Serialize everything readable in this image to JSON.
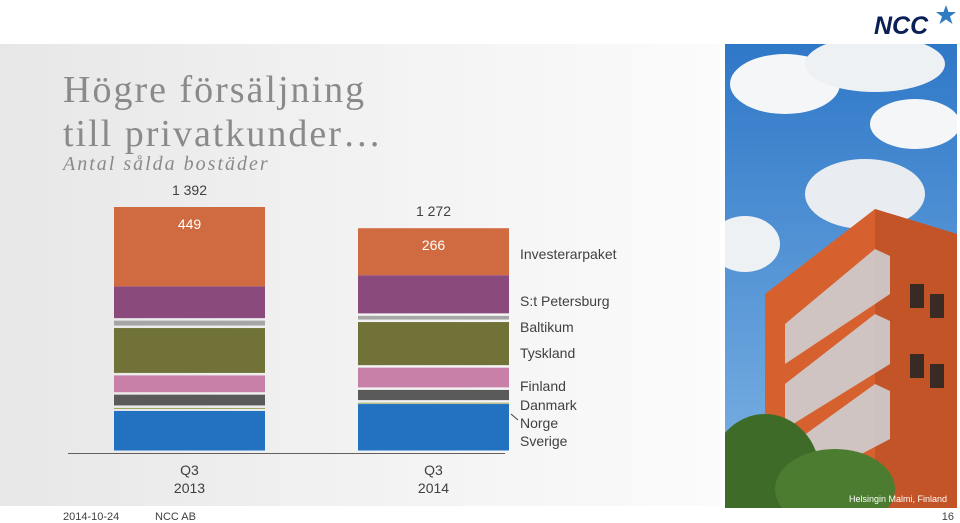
{
  "header": {
    "logo_text": "NCC",
    "brand_color": "#0b1f57",
    "star_color": "#2f7cc1"
  },
  "slide": {
    "title_line1": "Högre försäljning",
    "title_line2": "till privatkunder…",
    "subtitle": "Antal sålda bostäder"
  },
  "chart_data": {
    "type": "bar",
    "stacked": true,
    "categories": [
      "Q3\n2013",
      "Q3\n2014"
    ],
    "category_lines": [
      [
        "Q3",
        "2013"
      ],
      [
        "Q3",
        "2014"
      ]
    ],
    "totals": [
      1392,
      1272
    ],
    "total_labels": [
      "1 392",
      "1 272"
    ],
    "series": [
      {
        "name": "Sverige",
        "color": "#2372c1",
        "values": [
          238,
          277
        ]
      },
      {
        "name": "Norge",
        "color": "#9aa25a",
        "values": [
          17,
          8
        ]
      },
      {
        "name": "Danmark",
        "color": "#5a5a5a",
        "values": [
          75,
          72
        ]
      },
      {
        "name": "Finland",
        "color": "#c880a8",
        "values": [
          109,
          126
        ]
      },
      {
        "name": "Tyskland",
        "color": "#707238",
        "values": [
          268,
          258
        ]
      },
      {
        "name": "Baltikum",
        "color": "#a6a6a6",
        "values": [
          42,
          35
        ]
      },
      {
        "name": "S:t Petersburg",
        "color": "#8b4a7c",
        "values": [
          194,
          230
        ]
      },
      {
        "name": "Investerarpaket",
        "color": "#d06a40",
        "values": [
          449,
          266
        ]
      }
    ],
    "data_labels": [
      [
        "",
        "",
        "",
        "",
        "",
        "",
        "",
        "449"
      ],
      [
        "",
        "",
        "",
        "",
        "",
        "",
        "",
        "266"
      ]
    ],
    "grid": false,
    "legend": "right"
  },
  "photo": {
    "caption": "Helsingin Malmi, Finland"
  },
  "footer": {
    "date": "2014-10-24",
    "company": "NCC AB",
    "page": "16"
  }
}
